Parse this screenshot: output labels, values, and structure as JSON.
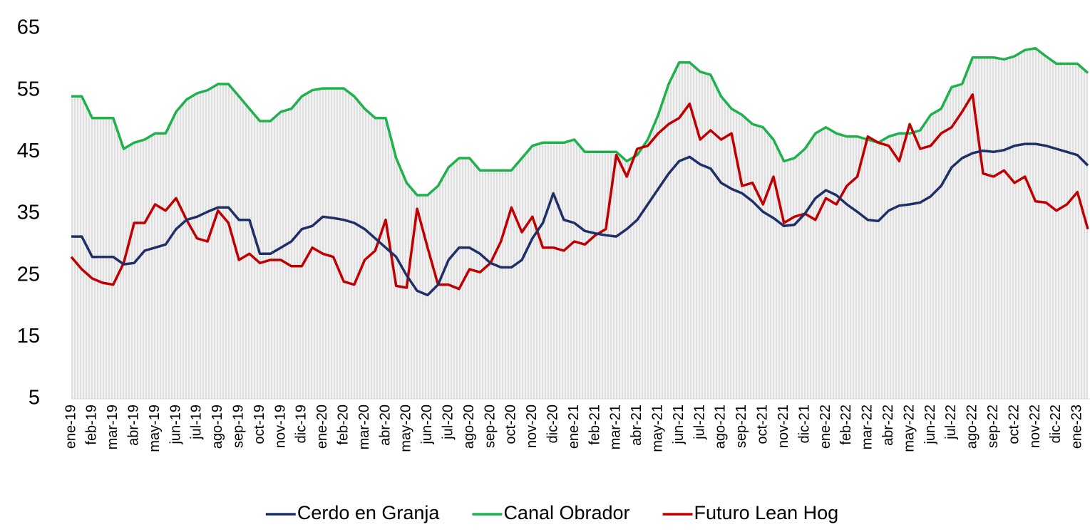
{
  "chart_data": {
    "type": "line",
    "categories": [
      "ene-19",
      null,
      "feb-19",
      null,
      "mar-19",
      null,
      "abr-19",
      null,
      "may-19",
      null,
      "jun-19",
      null,
      "jul-19",
      null,
      "ago-19",
      null,
      "sep-19",
      null,
      "oct-19",
      null,
      "nov-19",
      null,
      "dic-19",
      null,
      "ene-20",
      null,
      "feb-20",
      null,
      "mar-20",
      null,
      "abr-20",
      null,
      "may-20",
      null,
      "jun-20",
      null,
      "jul-20",
      null,
      "ago-20",
      null,
      "sep-20",
      null,
      "oct-20",
      null,
      "nov-20",
      null,
      "dic-20",
      null,
      "ene-21",
      null,
      "feb-21",
      null,
      "mar-21",
      null,
      "abr-21",
      null,
      "may-21",
      null,
      "jun-21",
      null,
      "jul-21",
      null,
      "ago-21",
      null,
      "sep-21",
      null,
      "oct-21",
      null,
      "nov-21",
      null,
      "dic-21",
      null,
      "ene-22",
      null,
      "feb-22",
      null,
      "mar-22",
      null,
      "abr-22",
      null,
      "may-22",
      null,
      "jun-22",
      null,
      "jul-22",
      null,
      "ago-22",
      null,
      "sep-22",
      null,
      "oct-22",
      null,
      "nov-22",
      null,
      "dic-22",
      null,
      "ene-23",
      null
    ],
    "series": [
      {
        "name": "Cerdo en Granja",
        "color": "#1f3068",
        "values": [
          31.3,
          31.3,
          28,
          28,
          28,
          26.8,
          27,
          29,
          29.5,
          30,
          32.5,
          34,
          34.5,
          35.3,
          36,
          36,
          34,
          34,
          28.5,
          28.5,
          29.5,
          30.5,
          32.5,
          33,
          34.5,
          34.3,
          34,
          33.5,
          32.5,
          31,
          29.5,
          28,
          25,
          22.5,
          21.8,
          23.5,
          27.5,
          29.5,
          29.5,
          28.5,
          27,
          26.3,
          26.3,
          27.5,
          31,
          33.5,
          38.3,
          34,
          33.5,
          32.2,
          31.8,
          31.5,
          31.3,
          32.5,
          34,
          36.5,
          39,
          41.5,
          43.5,
          44.2,
          43,
          42.3,
          40,
          39,
          38.3,
          37,
          35.3,
          34.3,
          33,
          33.2,
          35,
          37.5,
          38.8,
          38,
          36.5,
          35.3,
          34,
          33.8,
          35.5,
          36.3,
          36.5,
          36.8,
          37.8,
          39.5,
          42.5,
          44,
          44.8,
          45.2,
          45,
          45.3,
          46,
          46.3,
          46.3,
          46,
          45.5,
          45,
          44.5,
          42.8
        ]
      },
      {
        "name": "Canal Obrador",
        "color": "#1fb14c",
        "values": [
          54,
          54,
          50.5,
          50.5,
          50.5,
          45.5,
          46.5,
          47,
          48,
          48,
          51.5,
          53.5,
          54.5,
          55,
          56,
          56,
          54,
          52,
          50,
          50,
          51.5,
          52,
          54,
          55,
          55.3,
          55.3,
          55.3,
          54,
          52,
          50.5,
          50.5,
          44,
          40,
          38,
          38,
          39.5,
          42.5,
          44,
          44,
          42,
          42,
          42,
          42,
          44,
          46,
          46.5,
          46.5,
          46.5,
          47,
          45,
          45,
          45,
          45,
          43.5,
          44.5,
          47,
          51,
          56,
          59.5,
          59.5,
          58,
          57.5,
          54,
          52,
          51,
          49.5,
          49,
          47,
          43.5,
          44,
          45.5,
          48,
          49,
          48,
          47.5,
          47.5,
          47,
          46.5,
          47.5,
          48,
          48,
          48.5,
          51,
          52,
          55.5,
          56,
          60.3,
          60.3,
          60.3,
          60,
          60.5,
          61.5,
          61.8,
          60.5,
          59.3,
          59.3,
          59.3,
          57.8
        ]
      },
      {
        "name": "Futuro Lean Hog",
        "color": "#c00000",
        "values": [
          28,
          26,
          24.5,
          23.8,
          23.5,
          27,
          33.5,
          33.5,
          36.5,
          35.5,
          37.5,
          34,
          31,
          30.5,
          35.5,
          33.5,
          27.5,
          28.5,
          27,
          27.5,
          27.5,
          26.5,
          26.5,
          29.5,
          28.5,
          28,
          24,
          23.5,
          27.5,
          29,
          34,
          23.3,
          23,
          35.8,
          29.5,
          23.5,
          23.5,
          22.8,
          26,
          25.5,
          27,
          30.5,
          36,
          32,
          34.5,
          29.5,
          29.5,
          29,
          30.5,
          30,
          31.5,
          32.5,
          44.5,
          41,
          45.5,
          46,
          48,
          49.5,
          50.5,
          52.8,
          47,
          48.5,
          47,
          48,
          39.5,
          40,
          36.5,
          41,
          33.5,
          34.5,
          35,
          34,
          37.5,
          36.5,
          39.5,
          41,
          47.5,
          46.5,
          46,
          43.5,
          49.5,
          45.5,
          46,
          48,
          49,
          51.5,
          54.3,
          41.5,
          41,
          42,
          40,
          41,
          37,
          36.8,
          35.5,
          36.5,
          38.5,
          32.5
        ]
      }
    ],
    "ylim": [
      5,
      65
    ],
    "yticks": [
      5,
      15,
      25,
      35,
      45,
      55,
      65
    ],
    "grid": false,
    "legend": "bottom"
  }
}
